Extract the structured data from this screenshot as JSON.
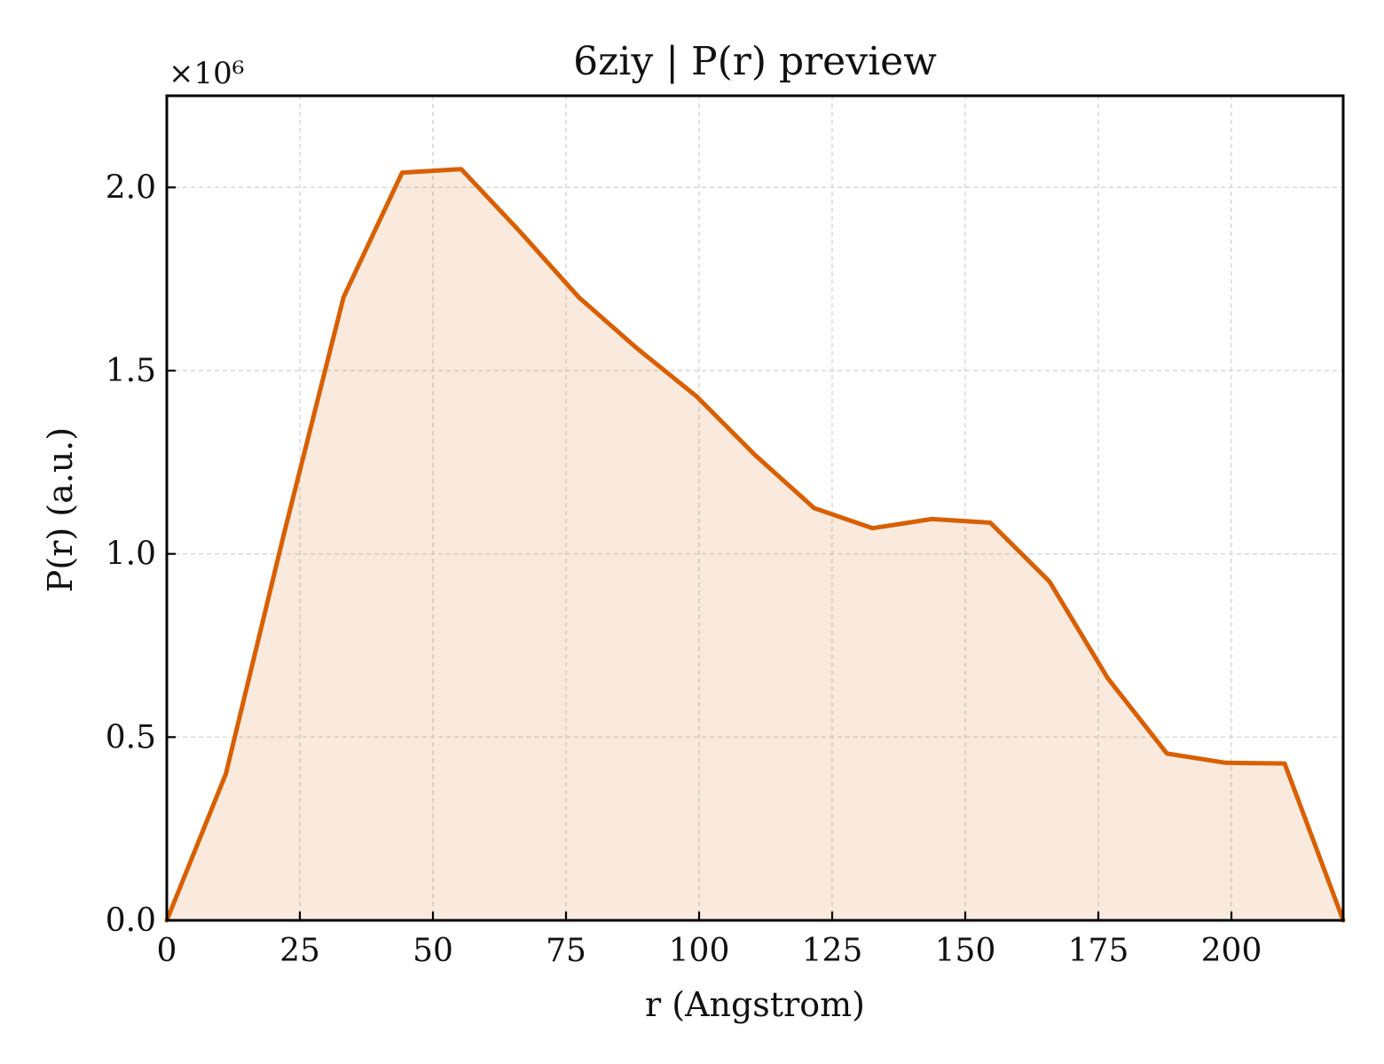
{
  "chart_data": {
    "type": "area",
    "title": "6ziy | P(r) preview",
    "xlabel": "r (Angstrom)",
    "ylabel": "P(r) (a.u.)",
    "y_multiplier_label": "×10⁶",
    "y_scale": 1000000,
    "xlim": [
      0,
      221
    ],
    "ylim": [
      0,
      2.25
    ],
    "x_ticks": [
      0,
      25,
      50,
      75,
      100,
      125,
      150,
      175,
      200
    ],
    "x_tick_labels": [
      "0",
      "25",
      "50",
      "75",
      "100",
      "125",
      "150",
      "175",
      "200"
    ],
    "y_ticks": [
      0,
      0.5,
      1.0,
      1.5,
      2.0
    ],
    "y_tick_labels": [
      "0.0",
      "0.5",
      "1.0",
      "1.5",
      "2.0"
    ],
    "grid": true,
    "series": [
      {
        "color": "#d95f02",
        "fill_color": "#d95f02",
        "fill_opacity": 0.13,
        "x": [
          0,
          11.1,
          22.1,
          33.2,
          44.2,
          55.3,
          66.3,
          77.4,
          88.4,
          99.5,
          110.5,
          121.6,
          132.6,
          143.7,
          154.7,
          165.8,
          176.8,
          187.9,
          198.9,
          210.0,
          221.0
        ],
        "y": [
          0,
          0.4,
          1.06,
          1.7,
          2.04,
          2.05,
          1.88,
          1.7,
          1.56,
          1.43,
          1.27,
          1.125,
          1.07,
          1.095,
          1.085,
          0.925,
          0.66,
          0.455,
          0.43,
          0.428,
          0
        ]
      }
    ]
  }
}
